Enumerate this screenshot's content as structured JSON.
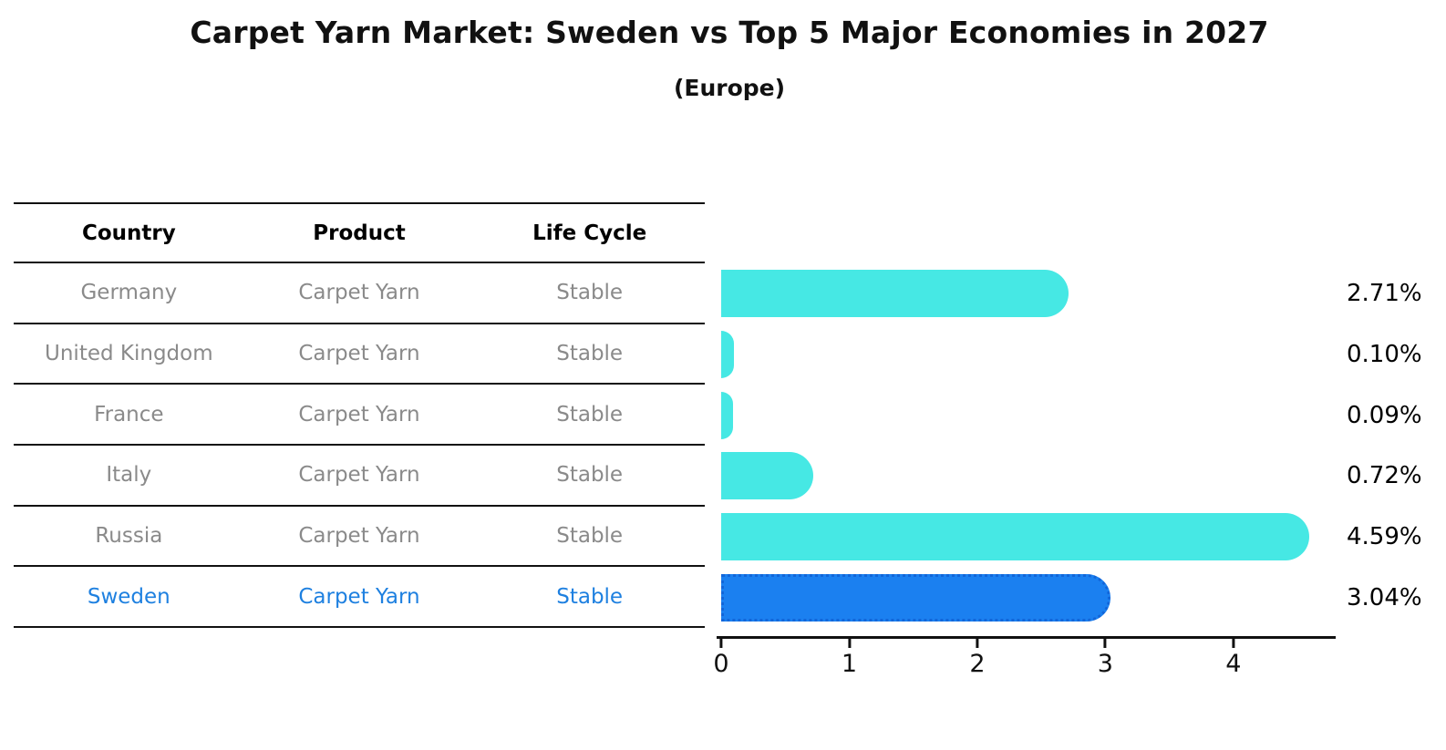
{
  "title": "Carpet Yarn Market: Sweden vs Top 5 Major Economies in 2027",
  "subtitle": "(Europe)",
  "table": {
    "headers": [
      "Country",
      "Product",
      "Life Cycle"
    ],
    "rows": [
      {
        "country": "Germany",
        "product": "Carpet Yarn",
        "life_cycle": "Stable"
      },
      {
        "country": "United Kingdom",
        "product": "Carpet Yarn",
        "life_cycle": "Stable"
      },
      {
        "country": "France",
        "product": "Carpet Yarn",
        "life_cycle": "Stable"
      },
      {
        "country": "Italy",
        "product": "Carpet Yarn",
        "life_cycle": "Stable"
      },
      {
        "country": "Russia",
        "product": "Carpet Yarn",
        "life_cycle": "Stable"
      },
      {
        "country": "Sweden",
        "product": "Carpet Yarn",
        "life_cycle": "Stable"
      }
    ],
    "highlighted_row": "Sweden"
  },
  "chart_data": {
    "type": "bar",
    "orientation": "horizontal",
    "title": "Carpet Yarn Market: Sweden vs Top 5 Major Economies in 2027",
    "subtitle": "(Europe)",
    "categories": [
      "Germany",
      "United Kingdom",
      "France",
      "Italy",
      "Russia",
      "Sweden"
    ],
    "values": [
      2.71,
      0.1,
      0.09,
      0.72,
      4.59,
      3.04
    ],
    "value_labels": [
      "2.71%",
      "0.10%",
      "0.09%",
      "0.72%",
      "4.59%",
      "3.04%"
    ],
    "highlight_category": "Sweden",
    "highlight_index": 5,
    "x_ticks": [
      0,
      1,
      2,
      3,
      4
    ],
    "xlim": [
      0,
      4.77
    ],
    "xlabel": "",
    "ylabel": "",
    "grid": false,
    "legend": false
  },
  "colors": {
    "bar": "#46e8e4",
    "highlight_bar": "#1b80f0",
    "highlight_border": "#1266d9",
    "row_text": "#8a8a8a",
    "highlight_text": "#1e80e0",
    "axis": "#111111"
  }
}
